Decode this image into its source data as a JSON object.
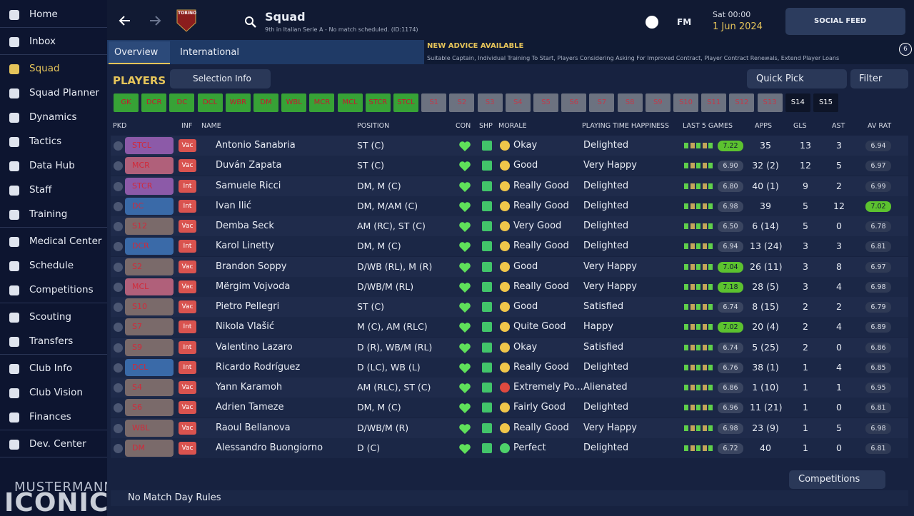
{
  "sidebar": {
    "groups": [
      [
        "Home"
      ],
      [
        "Inbox"
      ],
      [
        "Squad",
        "Squad Planner",
        "Dynamics",
        "Tactics",
        "Data Hub",
        "Staff",
        "Training"
      ],
      [
        "Medical Center",
        "Schedule",
        "Competitions"
      ],
      [
        "Scouting",
        "Transfers"
      ],
      [
        "Club Info",
        "Club Vision",
        "Finances"
      ],
      [
        "Dev. Center"
      ]
    ],
    "logo_top": "MUSTERMANN",
    "logo_bottom": "ICONIC"
  },
  "header": {
    "club_badge": "TORINO",
    "title": "Squad",
    "subtitle": "9th in Italian Serie A - No match scheduled. (ID:1174)",
    "fm": "FM",
    "time": "Sat 00:00",
    "date": "1 Jun 2024",
    "social_feed": "SOCIAL FEED"
  },
  "tabs": [
    "Overview",
    "International"
  ],
  "advice": {
    "title": "NEW ADVICE AVAILABLE",
    "text": "Suitable Captain, Individual Training To Start, Players Considering Asking For Improved Contract, Player Contract Renewals, Extend Player Loans",
    "count": "6"
  },
  "toolbar": {
    "title": "PLAYERS",
    "selection_info": "Selection Info",
    "quick_pick": "Quick Pick",
    "filter": "Filter"
  },
  "positions": [
    "GK",
    "DCR",
    "DC",
    "DCL",
    "WBR",
    "DM",
    "WBL",
    "MCR",
    "MCL",
    "STCR",
    "STCL",
    "S1",
    "S2",
    "S3",
    "S4",
    "S5",
    "S6",
    "S7",
    "S8",
    "S9",
    "S10",
    "S11",
    "S12",
    "S13",
    "S14",
    "S15"
  ],
  "table": {
    "columns": [
      "PKD",
      "INF",
      "NAME",
      "POSITION",
      "CON",
      "SHP",
      "MORALE",
      "PLAYING TIME HAPPINESS",
      "LAST 5 GAMES",
      "APPS",
      "GLS",
      "AST",
      "AV RAT"
    ],
    "rows": [
      [
        "STCL",
        "Vac",
        "Antonio Sanabria",
        "ST (C)",
        "Okay",
        "Delighted",
        "7.22",
        "35",
        "13",
        "3",
        "6.94"
      ],
      [
        "MCR",
        "Vac",
        "Duván Zapata",
        "ST (C)",
        "Good",
        "Very Happy",
        "6.90",
        "32 (2)",
        "12",
        "5",
        "6.97"
      ],
      [
        "STCR",
        "Int",
        "Samuele Ricci",
        "DM, M (C)",
        "Really Good",
        "Delighted",
        "6.80",
        "40 (1)",
        "9",
        "2",
        "6.99"
      ],
      [
        "DC",
        "Int",
        "Ivan Ilić",
        "DM, M/AM (C)",
        "Really Good",
        "Delighted",
        "6.98",
        "39",
        "5",
        "12",
        "7.02"
      ],
      [
        "S12",
        "Vac",
        "Demba Seck",
        "AM (RC), ST (C)",
        "Very Good",
        "Delighted",
        "6.50",
        "6 (14)",
        "5",
        "0",
        "6.78"
      ],
      [
        "DCR",
        "Int",
        "Karol Linetty",
        "DM, M (C)",
        "Really Good",
        "Delighted",
        "6.94",
        "13 (24)",
        "3",
        "3",
        "6.81"
      ],
      [
        "S2",
        "Vac",
        "Brandon Soppy",
        "D/WB (RL), M (R)",
        "Good",
        "Very Happy",
        "7.04",
        "26 (11)",
        "3",
        "8",
        "6.97"
      ],
      [
        "MCL",
        "Vac",
        "Mërgim Vojvoda",
        "D/WB/M (RL)",
        "Really Good",
        "Very Happy",
        "7.18",
        "28 (5)",
        "3",
        "4",
        "6.98"
      ],
      [
        "S10",
        "Vac",
        "Pietro Pellegri",
        "ST (C)",
        "Good",
        "Satisfied",
        "6.74",
        "8 (15)",
        "2",
        "2",
        "6.79"
      ],
      [
        "S7",
        "Int",
        "Nikola Vlašić",
        "M (C), AM (RLC)",
        "Quite Good",
        "Happy",
        "7.02",
        "20 (4)",
        "2",
        "4",
        "6.89"
      ],
      [
        "S9",
        "Int",
        "Valentino Lazaro",
        "D (R), WB/M (RL)",
        "Okay",
        "Satisfied",
        "6.74",
        "5 (25)",
        "2",
        "0",
        "6.86"
      ],
      [
        "DCL",
        "Int",
        "Ricardo Rodríguez",
        "D (LC), WB (L)",
        "Really Good",
        "Delighted",
        "6.76",
        "38 (1)",
        "1",
        "4",
        "6.85"
      ],
      [
        "S4",
        "Vac",
        "Yann Karamoh",
        "AM (RLC), ST (C)",
        "Extremely Po...",
        "Alienated",
        "6.86",
        "1 (10)",
        "1",
        "1",
        "6.95"
      ],
      [
        "S6",
        "Vac",
        "Adrien Tameze",
        "DM, M (C)",
        "Fairly Good",
        "Delighted",
        "6.96",
        "11 (21)",
        "1",
        "0",
        "6.81"
      ],
      [
        "WBL",
        "Vac",
        "Raoul Bellanova",
        "D/WB/M (R)",
        "Really Good",
        "Very Happy",
        "6.98",
        "23 (9)",
        "1",
        "5",
        "6.98"
      ],
      [
        "DM",
        "Vac",
        "Alessandro Buongiorno",
        "D (C)",
        "Perfect",
        "Delighted",
        "6.72",
        "40",
        "1",
        "0",
        "6.81"
      ]
    ]
  },
  "footer": {
    "competitions": "Competitions",
    "rules": "No Match Day Rules"
  }
}
